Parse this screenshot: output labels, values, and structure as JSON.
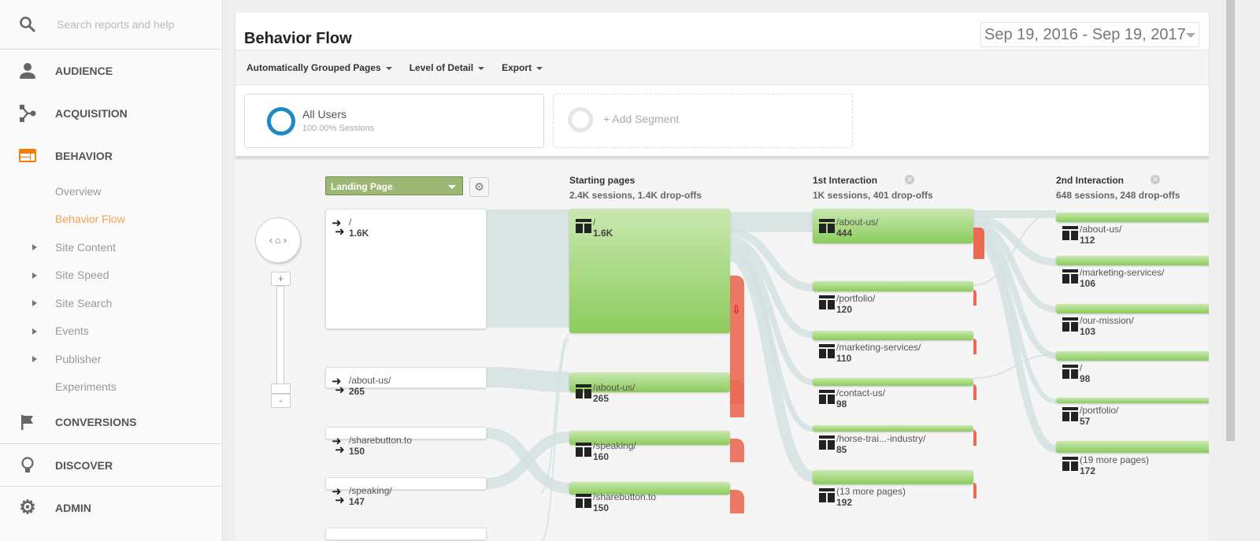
{
  "sidebar": {
    "search_placeholder": "Search reports and help",
    "sections": [
      {
        "label": "AUDIENCE",
        "icon": "person-icon"
      },
      {
        "label": "ACQUISITION",
        "icon": "acquisition-icon"
      },
      {
        "label": "BEHAVIOR",
        "icon": "behavior-icon"
      }
    ],
    "behavior_items": [
      "Overview",
      "Behavior Flow",
      "Site Content",
      "Site Speed",
      "Site Search",
      "Events",
      "Publisher",
      "Experiments"
    ],
    "bottom_sections": [
      {
        "label": "CONVERSIONS",
        "icon": "flag-icon"
      },
      {
        "label": "DISCOVER",
        "icon": "lightbulb-icon"
      },
      {
        "label": "ADMIN",
        "icon": "gear-icon"
      }
    ]
  },
  "header": {
    "title": "Behavior Flow",
    "date_range": "Sep 19, 2016 - Sep 19, 2017"
  },
  "toolbar": [
    "Automatically Grouped Pages",
    "Level of Detail",
    "Export"
  ],
  "segments": {
    "active_name": "All Users",
    "active_sub": "100.00% Sessions",
    "add": "+ Add Segment"
  },
  "flow": {
    "dimension": "Landing Page",
    "columns": [
      {
        "title": "Starting pages",
        "summary": "2.4K sessions, 1.4K drop-offs"
      },
      {
        "title": "1st Interaction",
        "summary": "1K sessions, 401 drop-offs"
      },
      {
        "title": "2nd Interaction",
        "summary": "648 sessions, 248 drop-offs"
      }
    ],
    "landing": [
      {
        "page": "/",
        "value": "1.6K"
      },
      {
        "page": "/about-us/",
        "value": "265"
      },
      {
        "page": "/sharebutton.to",
        "value": "150"
      },
      {
        "page": "/speaking/",
        "value": "147"
      }
    ],
    "starting": [
      {
        "page": "/",
        "value": "1.6K"
      },
      {
        "page": "/about-us/",
        "value": "265"
      },
      {
        "page": "/speaking/",
        "value": "160"
      },
      {
        "page": "/sharebutton.to",
        "value": "150"
      }
    ],
    "first": [
      {
        "page": "/about-us/",
        "value": "444"
      },
      {
        "page": "/portfolio/",
        "value": "120"
      },
      {
        "page": "/marketing-services/",
        "value": "110"
      },
      {
        "page": "/contact-us/",
        "value": "98"
      },
      {
        "page": "/horse-trai...-industry/",
        "value": "85"
      },
      {
        "page": "(13 more pages)",
        "value": "192"
      }
    ],
    "second": [
      {
        "page": "/about-us/",
        "value": "112"
      },
      {
        "page": "/marketing-services/",
        "value": "106"
      },
      {
        "page": "/our-mission/",
        "value": "103"
      },
      {
        "page": "/",
        "value": "98"
      },
      {
        "page": "/portfolio/",
        "value": "57"
      },
      {
        "page": "(19 more pages)",
        "value": "172"
      }
    ]
  },
  "colors": {
    "accent": "#f57c00",
    "green": "#8ccc5c",
    "dropoff": "#ec6a55",
    "segment": "#1e88c9"
  }
}
